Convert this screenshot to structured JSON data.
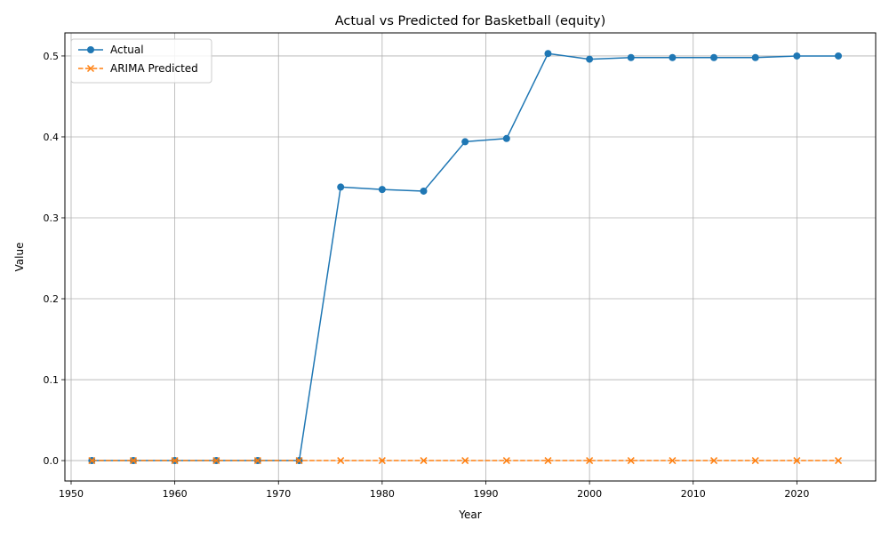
{
  "chart_data": {
    "type": "line",
    "title": "Actual vs Predicted for Basketball (equity)",
    "xlabel": "Year",
    "ylabel": "Value",
    "xlim": [
      1949.4,
      2027.6
    ],
    "ylim": [
      -0.0252,
      0.5285
    ],
    "x_ticks": [
      1950,
      1960,
      1970,
      1980,
      1990,
      2000,
      2010,
      2020
    ],
    "y_ticks": [
      0.0,
      0.1,
      0.2,
      0.3,
      0.4,
      0.5
    ],
    "x_tick_labels": [
      "1950",
      "1960",
      "1970",
      "1980",
      "1990",
      "2000",
      "2010",
      "2020"
    ],
    "y_tick_labels": [
      "0.0",
      "0.1",
      "0.2",
      "0.3",
      "0.4",
      "0.5"
    ],
    "grid": true,
    "legend_position": "top-left",
    "x": [
      1952,
      1956,
      1960,
      1964,
      1968,
      1972,
      1976,
      1980,
      1984,
      1988,
      1992,
      1996,
      2000,
      2004,
      2008,
      2012,
      2016,
      2020,
      2024
    ],
    "series": [
      {
        "name": "Actual",
        "color": "#1f77b4",
        "style": "solid",
        "marker": "circle",
        "values": [
          0,
          0,
          0,
          0,
          0,
          0,
          0.338,
          0.335,
          0.333,
          0.394,
          0.398,
          0.503,
          0.496,
          0.498,
          0.498,
          0.498,
          0.498,
          0.5,
          0.5
        ]
      },
      {
        "name": "ARIMA Predicted",
        "color": "#ff7f0e",
        "style": "dashed",
        "marker": "x",
        "values": [
          0,
          0,
          0,
          0,
          0,
          0,
          0,
          0,
          0,
          0,
          0,
          0,
          0,
          0,
          0,
          0,
          0,
          0,
          0
        ]
      }
    ]
  }
}
